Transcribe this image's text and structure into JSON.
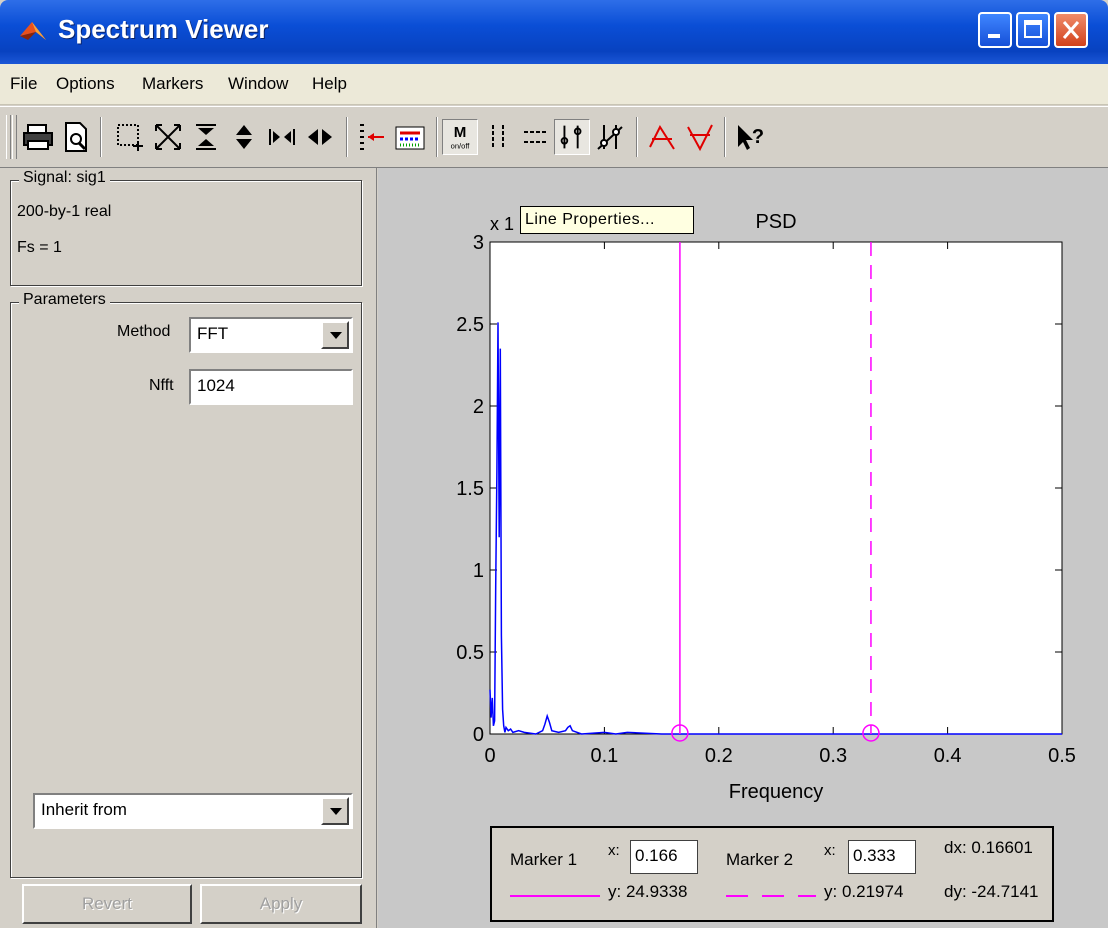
{
  "window": {
    "title": "Spectrum Viewer"
  },
  "menu": [
    "File",
    "Options",
    "Markers",
    "Window",
    "Help"
  ],
  "toolbar": {
    "icons": [
      "print-icon",
      "print-preview-icon",
      "zoom-box-icon",
      "full-view-icon",
      "zoom-y-icon",
      "expand-y-icon",
      "zoom-x-icon",
      "expand-x-icon",
      "line-properties-icon",
      "legend-icon",
      "markers-on-off-icon",
      "vertical-markers-icon",
      "horizontal-markers-icon",
      "track-markers-icon",
      "slope-markers-icon",
      "peaks-icon",
      "valleys-icon",
      "whats-this-icon"
    ],
    "tooltip": "Line Properties..."
  },
  "signal": {
    "label": "Signal: sig1",
    "size": "200-by-1 real",
    "fs": "Fs = 1"
  },
  "parameters": {
    "label": "Parameters",
    "method_label": "Method",
    "method_value": "FFT",
    "nfft_label": "Nfft",
    "nfft_value": "1024",
    "inherit_value": "Inherit from",
    "revert_label": "Revert",
    "apply_label": "Apply"
  },
  "markers": {
    "marker1_label": "Marker 1",
    "x_label": "x:",
    "marker1_x": "0.166",
    "marker2_label": "Marker 2",
    "marker2_x": "0.333",
    "dx": "dx: 0.16601",
    "y1": "y: 24.9338",
    "y2": "y: 0.21974",
    "dy": "dy: -24.7141"
  },
  "colors": {
    "psd_line": "#0000ff",
    "marker": "#ff00ff"
  },
  "chart_data": {
    "type": "line",
    "title": "PSD",
    "xlabel": "Frequency",
    "ylabel": "",
    "exponent_label": "x 1",
    "xlim": [
      0,
      0.5
    ],
    "ylim": [
      0,
      3
    ],
    "xticks": [
      "0",
      "0.1",
      "0.2",
      "0.3",
      "0.4",
      "0.5"
    ],
    "yticks": [
      "0",
      "0.5",
      "1",
      "1.5",
      "2",
      "2.5",
      "3"
    ],
    "series": [
      {
        "x": [
          0,
          0.001,
          0.002,
          0.003,
          0.004,
          0.005,
          0.006,
          0.007,
          0.008,
          0.009,
          0.01,
          0.011,
          0.012,
          0.013,
          0.014,
          0.016,
          0.018,
          0.02,
          0.025,
          0.03,
          0.04,
          0.046,
          0.048,
          0.05,
          0.052,
          0.054,
          0.06,
          0.066,
          0.068,
          0.07,
          0.072,
          0.08,
          0.1,
          0.11,
          0.12,
          0.15,
          0.2,
          0.3,
          0.4,
          0.5
        ],
        "values": [
          0.27,
          0.1,
          0.22,
          0.05,
          0.08,
          0.9,
          1.6,
          2.51,
          1.2,
          2.35,
          0.6,
          0.15,
          0.05,
          0.01,
          0.04,
          0.02,
          0.03,
          0.01,
          0.02,
          0.01,
          0.0,
          0.02,
          0.06,
          0.11,
          0.07,
          0.02,
          0.01,
          0.02,
          0.04,
          0.05,
          0.02,
          0.0,
          0.01,
          0.0,
          0.01,
          0.0,
          0.0,
          0.0,
          0.0,
          0.0
        ]
      }
    ],
    "markers": [
      {
        "x": 0.166,
        "style": "solid"
      },
      {
        "x": 0.333,
        "style": "dashed"
      }
    ]
  }
}
